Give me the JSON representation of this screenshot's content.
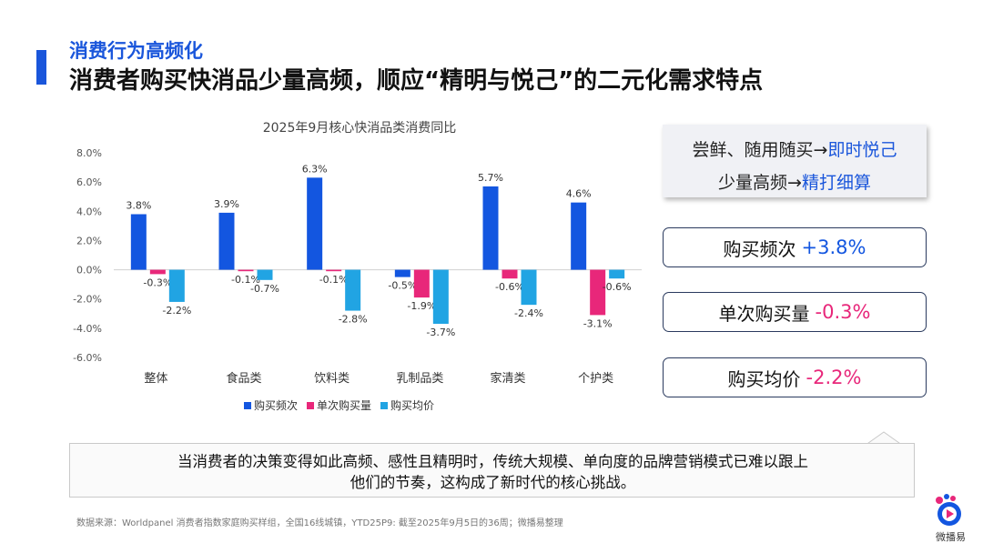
{
  "header": {
    "subtitle": "消费行为高频化",
    "title": "消费者购买快消品少量高频，顺应“精明与悦己”的二元化需求特点"
  },
  "chart_data": {
    "type": "bar",
    "title": "2025年9月核心快消品类消费同比",
    "categories": [
      "整体",
      "食品类",
      "饮料类",
      "乳制品类",
      "家清类",
      "个护类"
    ],
    "series": [
      {
        "name": "购买频次",
        "color": "#1356e0",
        "values": [
          3.8,
          3.9,
          6.3,
          -0.5,
          5.7,
          4.6
        ],
        "labels": [
          "3.8%",
          "3.9%",
          "6.3%",
          "-0.5%",
          "5.7%",
          "4.6%"
        ]
      },
      {
        "name": "单次购买量",
        "color": "#e8277a",
        "values": [
          -0.3,
          -0.1,
          -0.1,
          -1.9,
          -0.6,
          -3.1
        ],
        "labels": [
          "-0.3%",
          "-0.1%",
          "-0.1%",
          "-1.9%",
          "-0.6%",
          "-3.1%"
        ]
      },
      {
        "name": "购买均价",
        "color": "#21a4e3",
        "values": [
          -2.2,
          -0.7,
          -2.8,
          -3.7,
          -2.4,
          -0.6
        ],
        "labels": [
          "-2.2%",
          "-0.7%",
          "-2.8%",
          "-3.7%",
          "-2.4%",
          "-0.6%"
        ]
      }
    ],
    "ylim": [
      -6,
      8
    ],
    "yticks": [
      "8.0%",
      "6.0%",
      "4.0%",
      "2.0%",
      "0.0%",
      "-2.0%",
      "-4.0%",
      "-6.0%"
    ],
    "ytick_values": [
      8,
      6,
      4,
      2,
      0,
      -2,
      -4,
      -6
    ],
    "grid": false,
    "legend": "bottom"
  },
  "insight": {
    "line1_prefix": "尝鲜、随用随买→",
    "line1_highlight": "即时悦己",
    "line2_prefix": "少量高频→",
    "line2_highlight": "精打细算"
  },
  "metrics": [
    {
      "label": "购买频次",
      "value": "+3.8%",
      "color": "#1356e0"
    },
    {
      "label": "单次购买量",
      "value": "-0.3%",
      "color": "#e8277a"
    },
    {
      "label": "购买均价",
      "value": "-2.2%",
      "color": "#e8277a"
    }
  ],
  "callout": {
    "line1": "当消费者的决策变得如此高频、感性且精明时，传统大规模、单向度的品牌营销模式已难以跟上",
    "line2": "他们的节奏，这构成了新时代的核心挑战。"
  },
  "footnote": "数据来源：Worldpanel 消费者指数家庭购买样组，全国16线城镇，YTD25P9: 截至2025年9月5日的36周；微播易整理",
  "brand": {
    "name": "微播易"
  }
}
